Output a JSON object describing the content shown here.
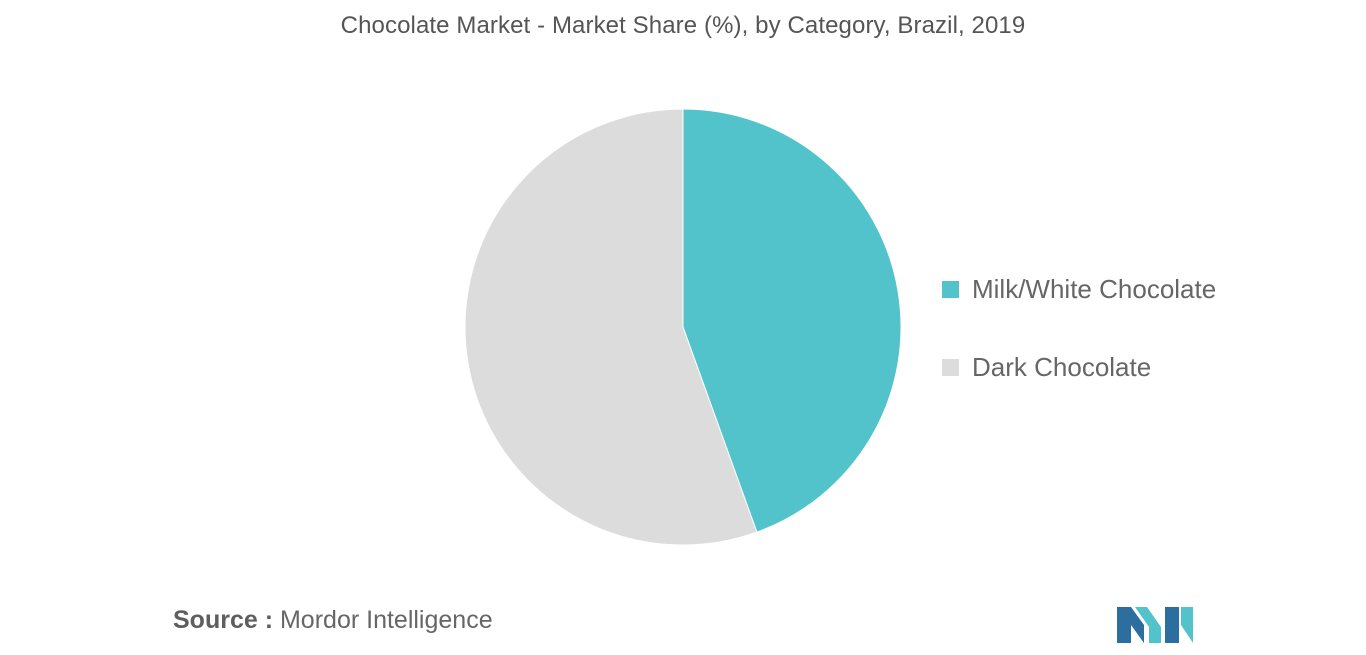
{
  "chart_data": {
    "type": "pie",
    "title": "Chocolate Market - Market Share (%), by Category, Brazil, 2019",
    "series": [
      {
        "name": "Milk/White Chocolate",
        "value": 44.5,
        "color": "#52c3ca"
      },
      {
        "name": "Dark Chocolate",
        "value": 55.5,
        "color": "#dcdcdc"
      }
    ],
    "start_angle": "12 o'clock",
    "direction": "clockwise",
    "legend_position": "right"
  },
  "source": {
    "prefix": "Source :",
    "text": "Mordor Intelligence"
  },
  "logo": {
    "icon": "mordor-intelligence-logo",
    "colors": [
      "#2c6e9e",
      "#52c3ca"
    ]
  }
}
